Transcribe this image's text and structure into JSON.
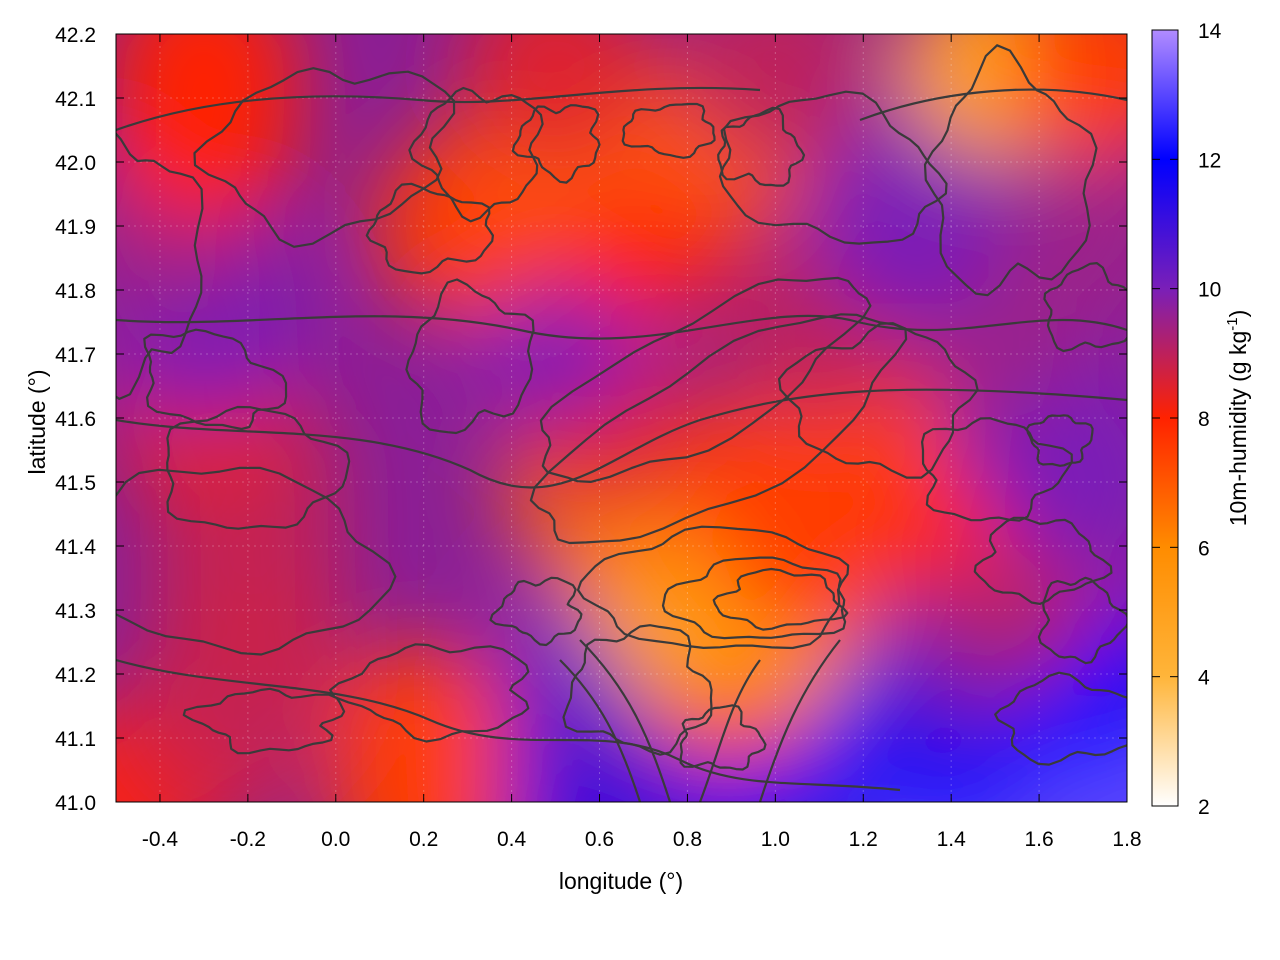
{
  "chart_data": {
    "type": "heatmap",
    "xlabel": "longitude (°)",
    "ylabel": "latitude (°)",
    "xlim": [
      -0.5,
      1.8
    ],
    "ylim": [
      41.0,
      42.2
    ],
    "x_ticks": [
      "-0.4",
      "-0.2",
      "0.0",
      "0.2",
      "0.4",
      "0.6",
      "0.8",
      "1.0",
      "1.2",
      "1.4",
      "1.6",
      "1.8"
    ],
    "y_ticks": [
      "41.0",
      "41.1",
      "41.2",
      "41.3",
      "41.4",
      "41.5",
      "41.6",
      "41.7",
      "41.8",
      "41.9",
      "42.0",
      "42.1",
      "42.2"
    ],
    "colorbar": {
      "label_main": "10m-humidity (g kg",
      "label_sup": "-1",
      "label_end": ")",
      "range": [
        2,
        14
      ],
      "ticks": [
        "2",
        "4",
        "6",
        "8",
        "10",
        "12",
        "14"
      ],
      "colors": [
        "#ffffff",
        "#ffb53a",
        "#ff8c00",
        "#ff2200",
        "#7a1fb8",
        "#0000ff",
        "#b18cff"
      ]
    },
    "contours": "black contour lines of terrain elevation overlaid on the humidity field",
    "grid": true,
    "humidity_field": [
      [
        41.0,
        -0.5,
        8.0
      ],
      [
        41.0,
        0.2,
        7.5
      ],
      [
        41.0,
        0.6,
        11.0
      ],
      [
        41.0,
        1.0,
        11.5
      ],
      [
        41.0,
        1.4,
        13.0
      ],
      [
        41.0,
        1.8,
        13.0
      ],
      [
        41.1,
        -0.3,
        8.5
      ],
      [
        41.1,
        0.2,
        7.5
      ],
      [
        41.1,
        0.6,
        11.0
      ],
      [
        41.1,
        1.0,
        11.5
      ],
      [
        41.1,
        1.4,
        12.0
      ],
      [
        41.2,
        -0.2,
        9.0
      ],
      [
        41.2,
        0.6,
        10.5
      ],
      [
        41.2,
        0.9,
        7.5
      ],
      [
        41.2,
        1.4,
        11.0
      ],
      [
        41.2,
        1.7,
        12.0
      ],
      [
        41.3,
        -0.2,
        8.8
      ],
      [
        41.3,
        0.8,
        5.0
      ],
      [
        41.3,
        1.0,
        5.5
      ],
      [
        41.3,
        1.5,
        9.5
      ],
      [
        41.4,
        -0.2,
        8.8
      ],
      [
        41.4,
        0.7,
        5.5
      ],
      [
        41.4,
        1.1,
        7.5
      ],
      [
        41.4,
        1.6,
        9.0
      ],
      [
        41.5,
        -0.2,
        9.0
      ],
      [
        41.5,
        0.6,
        6.5
      ],
      [
        41.5,
        1.0,
        7.5
      ],
      [
        41.5,
        1.4,
        8.0
      ],
      [
        41.5,
        1.7,
        10.0
      ],
      [
        41.6,
        -0.3,
        8.5
      ],
      [
        41.6,
        0.6,
        8.5
      ],
      [
        41.6,
        1.2,
        7.5
      ],
      [
        41.6,
        1.6,
        10.0
      ],
      [
        41.75,
        -0.3,
        10.0
      ],
      [
        41.75,
        0.5,
        10.0
      ],
      [
        41.75,
        1.1,
        9.0
      ],
      [
        41.75,
        1.5,
        9.5
      ],
      [
        41.9,
        -0.4,
        9.5
      ],
      [
        41.9,
        0.3,
        7.5
      ],
      [
        41.9,
        0.7,
        8.0
      ],
      [
        41.9,
        1.3,
        10.0
      ],
      [
        41.9,
        1.7,
        9.5
      ],
      [
        42.05,
        -0.3,
        8.0
      ],
      [
        42.05,
        0.5,
        7.0
      ],
      [
        42.05,
        0.9,
        7.0
      ],
      [
        42.05,
        1.4,
        10.0
      ],
      [
        42.15,
        -0.3,
        8.0
      ],
      [
        42.15,
        0.5,
        8.5
      ],
      [
        42.15,
        1.0,
        9.0
      ],
      [
        42.15,
        1.5,
        5.0
      ],
      [
        42.15,
        1.75,
        7.5
      ]
    ]
  }
}
